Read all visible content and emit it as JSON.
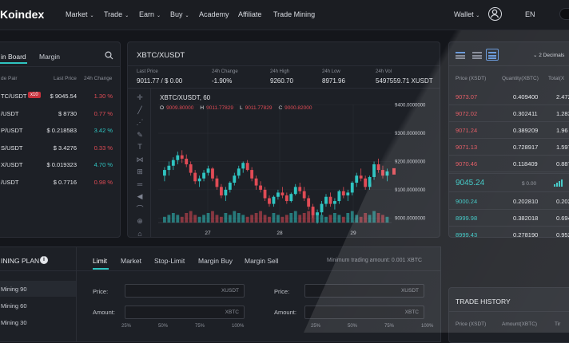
{
  "nav": {
    "logo": "Koindex",
    "menu": [
      "Market",
      "Trade",
      "Earn",
      "Buy",
      "Academy",
      "Affiliate",
      "Trade Mining"
    ],
    "menu_dropdown": [
      true,
      true,
      true,
      true,
      false,
      false,
      false
    ],
    "wallet": "Wallet",
    "lang": "EN"
  },
  "board": {
    "tabs": [
      "in Board",
      "Margin"
    ],
    "headers": [
      "de Pair",
      "Last Price",
      "24h Change"
    ],
    "rows": [
      {
        "pair": "TC/USDT",
        "badge": "x10",
        "price": "$ 9045.54",
        "change": "1.30 %",
        "dir": "down"
      },
      {
        "pair": "/USDT",
        "price": "$ 8730",
        "change": "0.77 %",
        "dir": "down"
      },
      {
        "pair": "P/USDT",
        "price": "$ 0.218583",
        "change": "3.42 %",
        "dir": "up"
      },
      {
        "pair": "S/USDT",
        "price": "$ 3.4276",
        "change": "0.33 %",
        "dir": "down"
      },
      {
        "pair": "X/USDT",
        "price": "$ 0.019323",
        "change": "4.70 %",
        "dir": "up"
      },
      {
        "pair": "/USDT",
        "price": "$ 0.7716",
        "change": "0.98 %",
        "dir": "down"
      }
    ]
  },
  "ticker": {
    "pair": "XBTC/XUSDT",
    "stats": [
      {
        "label": "Last Price",
        "value": "9011.77 / $ 0.00"
      },
      {
        "label": "24h Change",
        "value": "-1.90%"
      },
      {
        "label": "24h High",
        "value": "9260.70"
      },
      {
        "label": "24h Low",
        "value": "8971.96"
      },
      {
        "label": "24h Vol",
        "value": "5497559.71 XUSDT"
      }
    ]
  },
  "chart": {
    "title": "XBTC/XUSDT, 60",
    "ohlc": [
      {
        "k": "O",
        "v": "9009.80000"
      },
      {
        "k": "H",
        "v": "9011.77829"
      },
      {
        "k": "L",
        "v": "9011.77829"
      },
      {
        "k": "C",
        "v": "9000.82000"
      }
    ],
    "y_ticks": [
      "9400.0000000",
      "9300.0000000",
      "9200.0000000",
      "9100.0000000",
      "9000.0000000"
    ],
    "x_ticks": [
      "27",
      "28",
      "29"
    ]
  },
  "chart_data": {
    "type": "candlestick",
    "title": "XBTC/XUSDT, 60",
    "ylim": [
      8950,
      9430
    ],
    "x_tick_labels": [
      "27",
      "28",
      "29"
    ],
    "candles": [
      [
        9150,
        9180,
        9130,
        9170
      ],
      [
        9170,
        9200,
        9150,
        9185
      ],
      [
        9185,
        9215,
        9170,
        9205
      ],
      [
        9205,
        9235,
        9190,
        9222
      ],
      [
        9222,
        9240,
        9195,
        9210
      ],
      [
        9210,
        9225,
        9180,
        9190
      ],
      [
        9190,
        9200,
        9150,
        9160
      ],
      [
        9160,
        9170,
        9120,
        9130
      ],
      [
        9130,
        9150,
        9110,
        9140
      ],
      [
        9140,
        9170,
        9130,
        9160
      ],
      [
        9160,
        9185,
        9150,
        9175
      ],
      [
        9175,
        9180,
        9130,
        9140
      ],
      [
        9140,
        9150,
        9100,
        9110
      ],
      [
        9110,
        9120,
        9070,
        9080
      ],
      [
        9080,
        9110,
        9060,
        9100
      ],
      [
        9100,
        9130,
        9090,
        9125
      ],
      [
        9125,
        9160,
        9115,
        9150
      ],
      [
        9150,
        9185,
        9140,
        9175
      ],
      [
        9175,
        9200,
        9160,
        9195
      ],
      [
        9195,
        9205,
        9165,
        9170
      ],
      [
        9170,
        9180,
        9130,
        9140
      ],
      [
        9140,
        9150,
        9100,
        9115
      ],
      [
        9115,
        9130,
        9090,
        9100
      ],
      [
        9100,
        9110,
        9060,
        9070
      ],
      [
        9070,
        9080,
        9040,
        9050
      ],
      [
        9050,
        9080,
        9040,
        9075
      ],
      [
        9075,
        9100,
        9065,
        9090
      ],
      [
        9090,
        9110,
        9070,
        9080
      ],
      [
        9080,
        9090,
        9050,
        9060
      ],
      [
        9060,
        9090,
        9055,
        9085
      ],
      [
        9085,
        9120,
        9080,
        9110
      ],
      [
        9110,
        9125,
        9085,
        9095
      ],
      [
        9095,
        9110,
        9060,
        9070
      ],
      [
        9070,
        9080,
        9030,
        9040
      ],
      [
        9040,
        9050,
        9000,
        9010
      ],
      [
        9010,
        9030,
        8980,
        9020
      ],
      [
        9020,
        9060,
        9010,
        9050
      ],
      [
        9050,
        9085,
        9040,
        9075
      ],
      [
        9075,
        9090,
        9040,
        9050
      ],
      [
        9050,
        9070,
        9030,
        9060
      ],
      [
        9060,
        9100,
        9050,
        9095
      ],
      [
        9095,
        9110,
        9070,
        9080
      ],
      [
        9080,
        9100,
        9060,
        9090
      ],
      [
        9090,
        9130,
        9080,
        9125
      ],
      [
        9125,
        9160,
        9110,
        9150
      ],
      [
        9150,
        9175,
        9130,
        9140
      ],
      [
        9140,
        9150,
        9100,
        9110
      ],
      [
        9110,
        9150,
        9100,
        9145
      ],
      [
        9145,
        9200,
        9135,
        9190
      ],
      [
        9190,
        9210,
        9160,
        9170
      ],
      [
        9170,
        9185,
        9140,
        9150
      ],
      [
        9150,
        9175,
        9130,
        9165
      ]
    ],
    "volumes": [
      3,
      4,
      5,
      4,
      3,
      5,
      6,
      4,
      3,
      4,
      5,
      6,
      4,
      3,
      5,
      4,
      6,
      5,
      4,
      3,
      4,
      5,
      6,
      4,
      3,
      5,
      4,
      3,
      4,
      5,
      6,
      4,
      5,
      6,
      7,
      5,
      4,
      3,
      4,
      5,
      4,
      3,
      5,
      6,
      4,
      3,
      5,
      4,
      6,
      5,
      4,
      3
    ]
  },
  "trading_plan": {
    "title": "INING PLAN",
    "items": [
      "Mining 90",
      "Mining 60",
      "Mining 30"
    ]
  },
  "order_form": {
    "tabs": [
      "Limit",
      "Market",
      "Stop-Limit",
      "Margin Buy",
      "Margin Sell"
    ],
    "min_amount": "Minimum trading amount: 0.001 XBTC",
    "price_label": "Price:",
    "amount_label": "Amount:",
    "price_unit": "XUSDT",
    "amount_unit": "XBTC",
    "percents": [
      "25%",
      "50%",
      "75%",
      "100%"
    ]
  },
  "orderbook": {
    "decimals": "2 Decimals",
    "headers": [
      "Price (XSDT)",
      "Quantity(XBTC)",
      "Total(X"
    ],
    "asks": [
      {
        "price": "9073.07",
        "qty": "0.409400",
        "total": "2.472"
      },
      {
        "price": "9072.02",
        "qty": "0.302411",
        "total": "1.283"
      },
      {
        "price": "9071.24",
        "qty": "0.389209",
        "total": "1.96"
      },
      {
        "price": "9071.13",
        "qty": "0.728917",
        "total": "1.597"
      },
      {
        "price": "9070.46",
        "qty": "0.118409",
        "total": "0.887"
      }
    ],
    "mid_price": "9045.24",
    "mid_usd": "$ 0.00",
    "bids": [
      {
        "price": "9000.24",
        "qty": "0.202810",
        "total": "0.202"
      },
      {
        "price": "8999.98",
        "qty": "0.382018",
        "total": "0.694"
      },
      {
        "price": "8999.43",
        "qty": "0.278190",
        "total": "0.952"
      },
      {
        "price": "8998.22",
        "qty": "0.892948",
        "total": "0.887"
      },
      {
        "price": "8998.14",
        "qty": "0.928408",
        "total": "0.98"
      }
    ]
  },
  "trade_history": {
    "title": "TRADE HISTORY",
    "headers": [
      "Price (XSDT)",
      "Amount(XBTC)",
      "Tir"
    ]
  },
  "colors": {
    "up": "#2fc4c1",
    "down": "#e04b55",
    "panel": "#1d2026",
    "bg": "#14161b"
  }
}
